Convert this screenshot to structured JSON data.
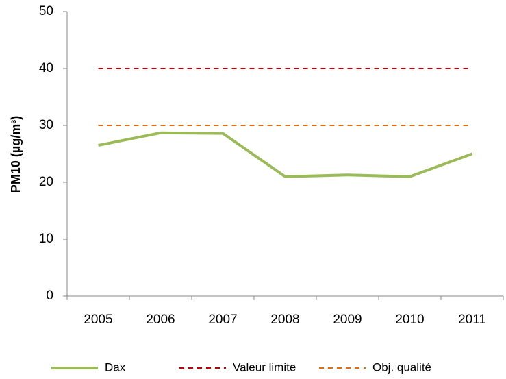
{
  "chart_data": {
    "type": "line",
    "ylabel": "PM10 (µg/m³)",
    "categories": [
      "2005",
      "2006",
      "2007",
      "2008",
      "2009",
      "2010",
      "2011"
    ],
    "series": [
      {
        "name": "Dax",
        "color": "#9bbb59",
        "dashed": false,
        "values": [
          26.5,
          28.7,
          28.6,
          21.0,
          21.3,
          21.0,
          25.0
        ]
      },
      {
        "name": "Valeur limite",
        "color": "#c00000",
        "dashed": true,
        "values": [
          40,
          40,
          40,
          40,
          40,
          40,
          40
        ]
      },
      {
        "name": "Obj. qualité",
        "color": "#e46c0a",
        "dashed": true,
        "values": [
          30,
          30,
          30,
          30,
          30,
          30,
          30
        ]
      }
    ],
    "ylim": [
      0,
      50
    ],
    "yticks": [
      0,
      10,
      20,
      30,
      40,
      50
    ],
    "grid": false,
    "legend": "bottom"
  }
}
